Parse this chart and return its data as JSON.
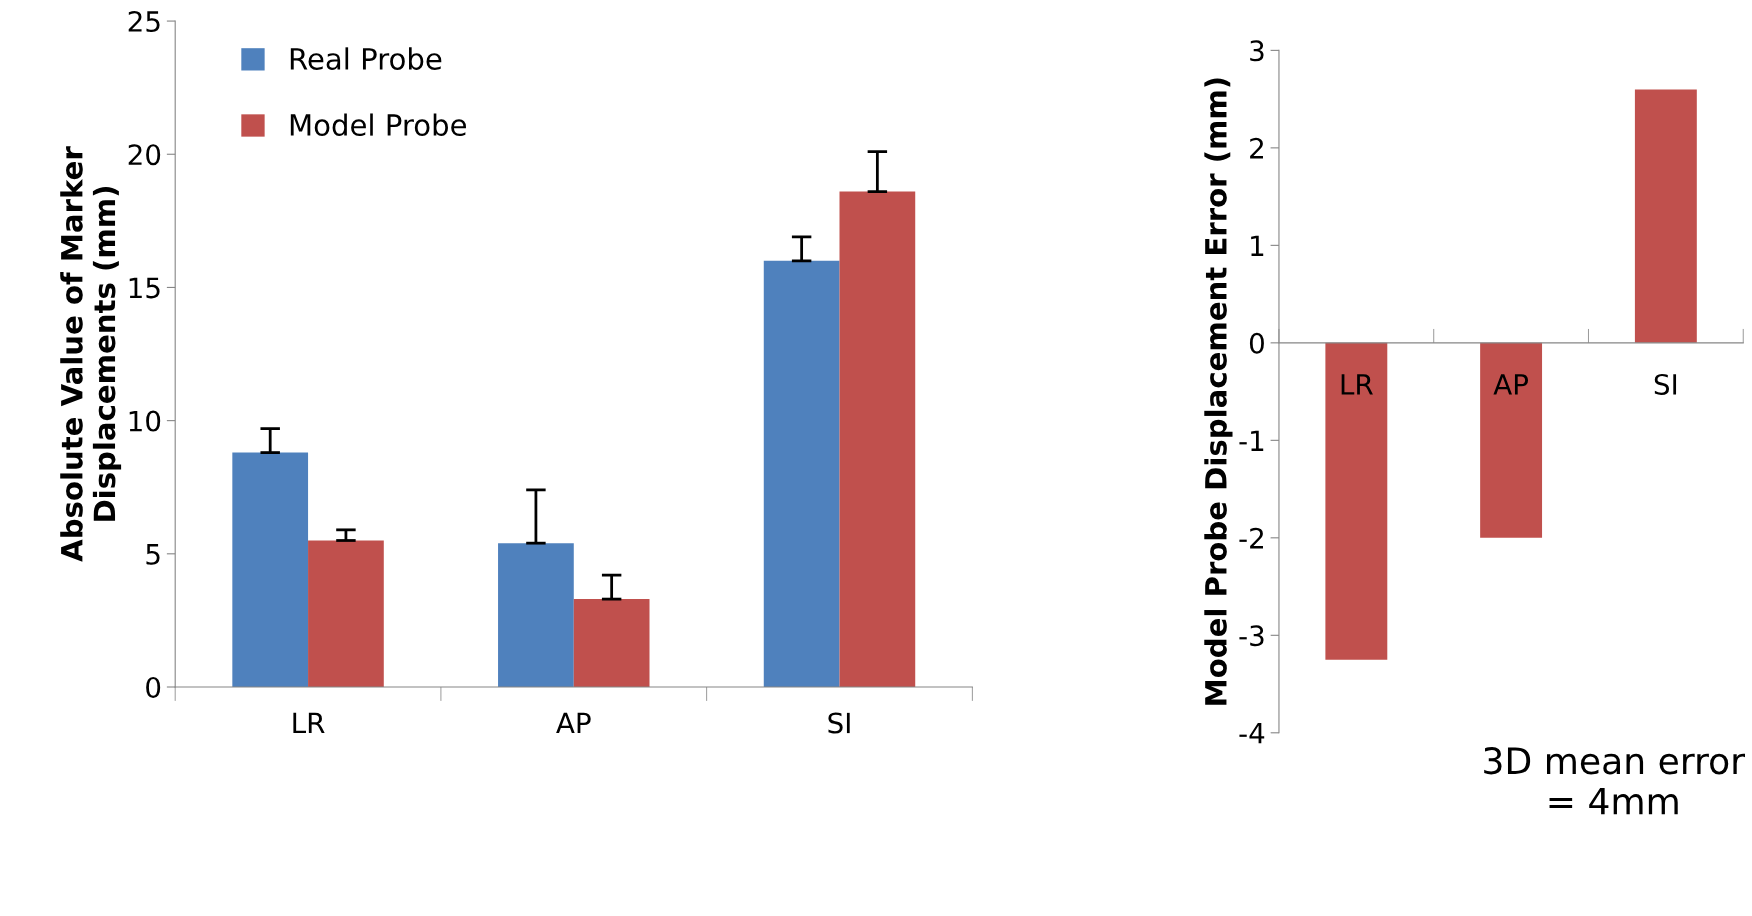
{
  "chart_data": [
    {
      "type": "bar",
      "ylabel": "Absolute Value of Marker\nDisplacements (mm)",
      "categories": [
        "LR",
        "AP",
        "SI"
      ],
      "series": [
        {
          "name": "Real Probe",
          "color": "#4f81bd",
          "values": [
            8.8,
            5.4,
            16.0
          ],
          "errors": [
            [
              8.8,
              9.7
            ],
            [
              5.4,
              7.4
            ],
            [
              16.0,
              16.9
            ]
          ]
        },
        {
          "name": "Model Probe",
          "color": "#c0504d",
          "values": [
            5.5,
            3.3,
            18.6
          ],
          "errors": [
            [
              5.5,
              5.9
            ],
            [
              3.3,
              4.2
            ],
            [
              18.6,
              20.1
            ]
          ]
        }
      ],
      "ylim": [
        0,
        25
      ],
      "yticks": [
        0,
        5,
        10,
        15,
        20,
        25
      ],
      "grid": false,
      "legend": "top left"
    },
    {
      "type": "bar",
      "ylabel": "Model Probe Displacement Error (mm)",
      "categories": [
        "LR",
        "AP",
        "SI"
      ],
      "series": [
        {
          "color": "#c0504d",
          "values": [
            -3.25,
            -2.0,
            2.6
          ]
        }
      ],
      "ylim": [
        -4,
        3
      ],
      "yticks": [
        -4,
        -3,
        -2,
        -1,
        0,
        1,
        2,
        3
      ],
      "grid": false,
      "legend": false,
      "annotations": [
        "3D mean error\n= 4mm"
      ]
    }
  ]
}
